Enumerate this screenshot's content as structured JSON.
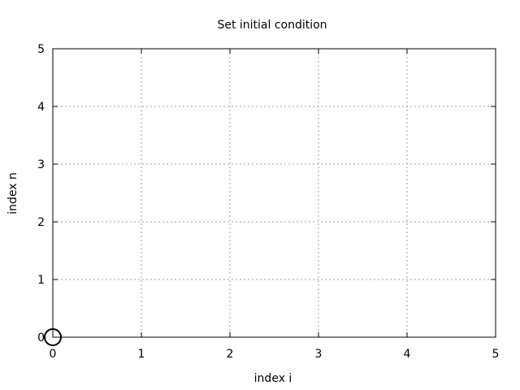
{
  "chart_data": {
    "type": "scatter",
    "title": "Set initial condition",
    "xlabel": "index i",
    "ylabel": "index n",
    "xlim": [
      0,
      5
    ],
    "ylim": [
      0,
      5
    ],
    "xticks": [
      0,
      1,
      2,
      3,
      4,
      5
    ],
    "yticks": [
      0,
      1,
      2,
      3,
      4,
      5
    ],
    "xtick_labels": [
      "0",
      "1",
      "2",
      "3",
      "4",
      "5"
    ],
    "ytick_labels": [
      "0",
      "1",
      "2",
      "3",
      "4",
      "5"
    ],
    "grid": true,
    "series": [
      {
        "marker": "open-circle",
        "points": [
          {
            "x": 0,
            "y": 0
          }
        ]
      }
    ],
    "colors": {
      "axis": "#000000",
      "grid": "#a0a0a0",
      "marker": "#000000",
      "background": "#ffffff"
    }
  }
}
